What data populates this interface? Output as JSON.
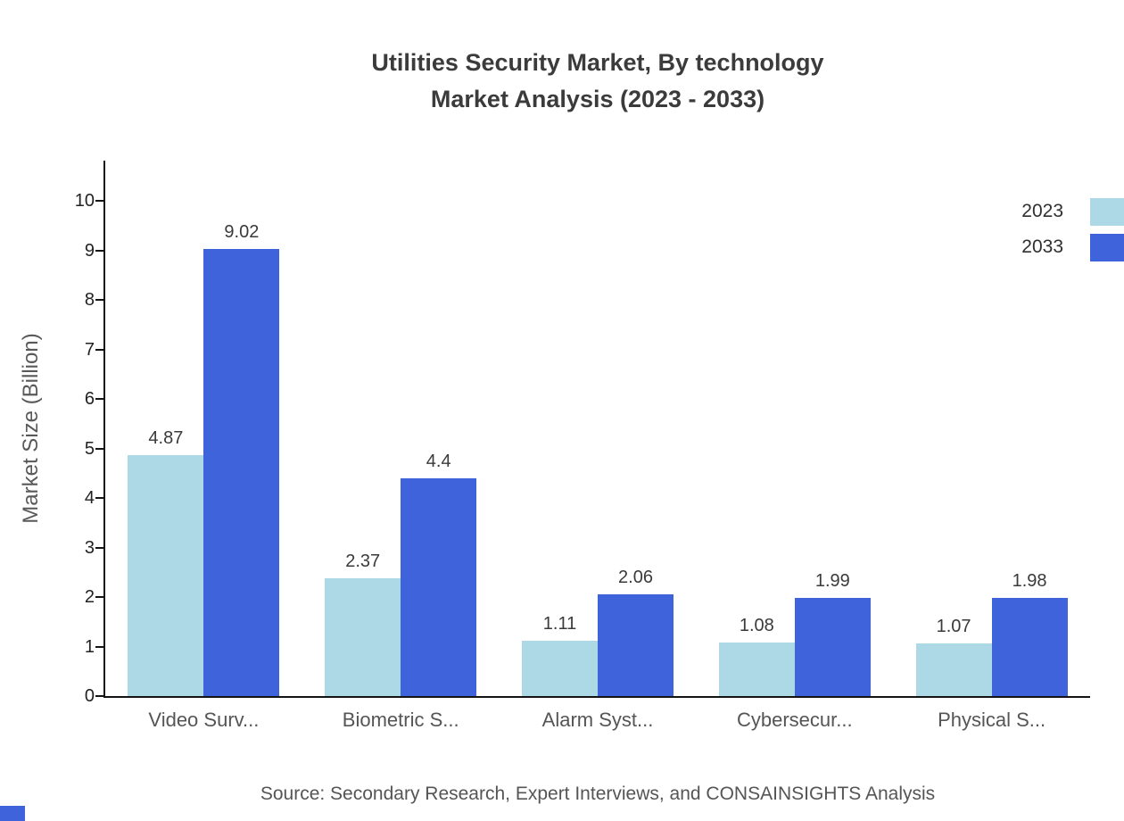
{
  "title": {
    "line1": "Utilities Security Market, By technology",
    "line2": "Market Analysis (2023 - 2033)"
  },
  "source": "Source: Secondary Research, Expert Interviews, and CONSAINSIGHTS Analysis",
  "chart_data": {
    "type": "bar",
    "title": "Utilities Security Market, By technology Market Analysis (2023 - 2033)",
    "categories": [
      "Video Surv...",
      "Biometric S...",
      "Alarm Syst...",
      "Cybersecur...",
      "Physical S..."
    ],
    "series": [
      {
        "name": "2023",
        "color": "#ADD8E6",
        "values": [
          4.87,
          2.37,
          1.11,
          1.08,
          1.07
        ]
      },
      {
        "name": "2033",
        "color": "#3E63DB",
        "values": [
          9.02,
          4.4,
          2.06,
          1.99,
          1.98
        ]
      }
    ],
    "xlabel": "",
    "ylabel": "Market Size (Billion)",
    "ylim": [
      0,
      10
    ],
    "yticks": [
      0,
      1,
      2,
      3,
      4,
      5,
      6,
      7,
      8,
      9,
      10
    ],
    "legend_entries": [
      "2023",
      "2033"
    ],
    "legend_position": "top-right",
    "grid": false
  }
}
